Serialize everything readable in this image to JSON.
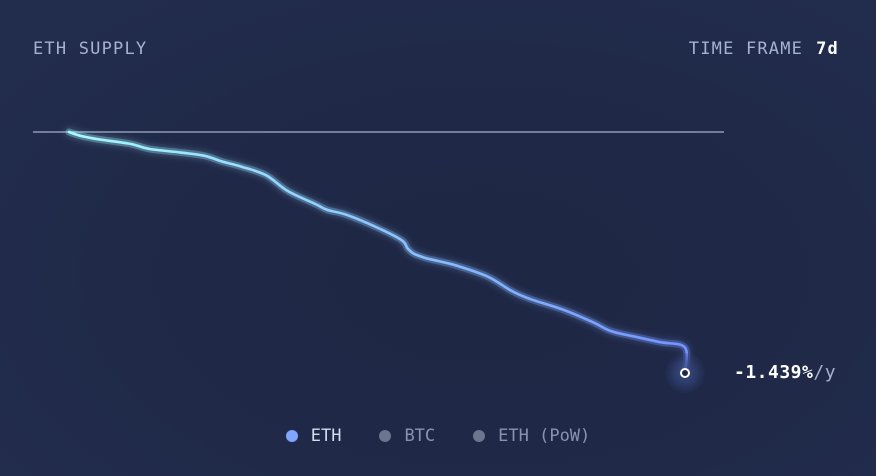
{
  "header": {
    "title": "ETH SUPPLY",
    "timeframe_label": "TIME FRAME",
    "timeframe_value": "7d"
  },
  "chart_data": {
    "type": "line",
    "title": "ETH SUPPLY",
    "grid": false,
    "legend_position": "bottom-center",
    "baseline_y": 0,
    "ylim": [
      -1.439,
      0.0
    ],
    "xlim": [
      0,
      1
    ],
    "series": [
      {
        "name": "ETH",
        "color_start": "#a5fbff",
        "color_end": "#7493ff",
        "x": [
          0.0,
          0.02,
          0.05,
          0.1,
          0.13,
          0.18,
          0.22,
          0.25,
          0.28,
          0.32,
          0.355,
          0.4,
          0.42,
          0.45,
          0.5,
          0.54,
          0.55,
          0.56,
          0.58,
          0.6,
          0.63,
          0.68,
          0.72,
          0.75,
          0.8,
          0.85,
          0.88,
          0.92,
          0.96,
          1.0
        ],
        "values": [
          0.0,
          -0.024,
          -0.045,
          -0.071,
          -0.101,
          -0.122,
          -0.142,
          -0.178,
          -0.207,
          -0.258,
          -0.352,
          -0.43,
          -0.466,
          -0.494,
          -0.57,
          -0.646,
          -0.697,
          -0.727,
          -0.754,
          -0.771,
          -0.799,
          -0.864,
          -0.952,
          -0.999,
          -1.058,
          -1.135,
          -1.189,
          -1.223,
          -1.255,
          -1.287
        ]
      }
    ],
    "end_value_label": "-1.439%",
    "end_value_unit": "/y"
  },
  "legend": [
    {
      "label": "ETH",
      "active": true
    },
    {
      "label": "BTC",
      "active": false
    },
    {
      "label": "ETH (PoW)",
      "active": false
    }
  ],
  "colors": {
    "accent": "#7fa6ff",
    "line_start": "#a5fbff",
    "line_end": "#7493ff",
    "baseline": "#8f98b8",
    "muted_text": "#a5b2d0",
    "inactive_dot": "#6b7590"
  }
}
